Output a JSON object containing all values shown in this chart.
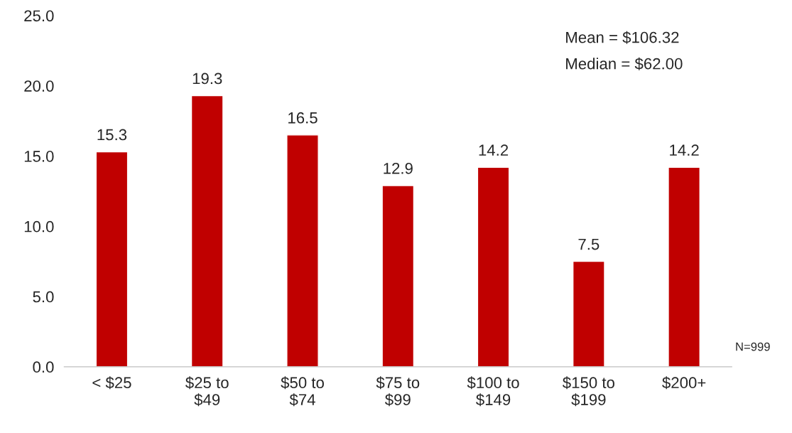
{
  "chart_data": {
    "type": "bar",
    "categories": [
      "< $25",
      "$25 to\n$49",
      "$50 to\n$74",
      "$75 to\n$99",
      "$100 to\n$149",
      "$150 to\n$199",
      "$200+"
    ],
    "values": [
      15.3,
      19.3,
      16.5,
      12.9,
      14.2,
      7.5,
      14.2
    ],
    "color": "#c00000",
    "data_labels": true,
    "ylim": [
      0,
      25
    ],
    "yticks": [
      {
        "value": 0,
        "label": "0.0"
      },
      {
        "value": 5,
        "label": "5.0"
      },
      {
        "value": 10,
        "label": "10.0"
      },
      {
        "value": 15,
        "label": "15.0"
      },
      {
        "value": 20,
        "label": "20.0"
      },
      {
        "value": 25,
        "label": "25.0"
      }
    ],
    "grid": false,
    "annotations": [
      "Mean = $106.32",
      "Median = $62.00",
      "N=999"
    ]
  }
}
